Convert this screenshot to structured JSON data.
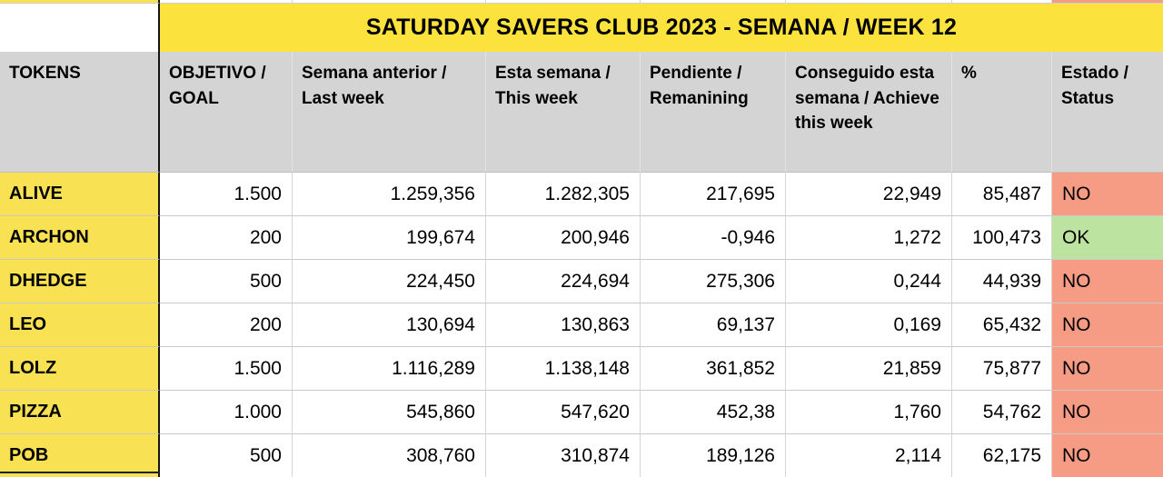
{
  "title": "SATURDAY SAVERS CLUB 2023 - SEMANA / WEEK 12",
  "columns": [
    "TOKENS",
    "OBJETIVO / GOAL",
    "Semana anterior / Last week",
    "Esta semana / This week",
    "Pendiente / Remanining",
    "Conseguido esta semana / Achieve this week",
    "%",
    "Estado / Status"
  ],
  "rows": [
    {
      "token": "ALIVE",
      "goal": "1.500",
      "last_week": "1.259,356",
      "this_week": "1.282,305",
      "remaining": "217,695",
      "achieved": "22,949",
      "percent": "85,487",
      "status": "NO"
    },
    {
      "token": "ARCHON",
      "goal": "200",
      "last_week": "199,674",
      "this_week": "200,946",
      "remaining": "-0,946",
      "achieved": "1,272",
      "percent": "100,473",
      "status": "OK"
    },
    {
      "token": "DHEDGE",
      "goal": "500",
      "last_week": "224,450",
      "this_week": "224,694",
      "remaining": "275,306",
      "achieved": "0,244",
      "percent": "44,939",
      "status": "NO"
    },
    {
      "token": "LEO",
      "goal": "200",
      "last_week": "130,694",
      "this_week": "130,863",
      "remaining": "69,137",
      "achieved": "0,169",
      "percent": "65,432",
      "status": "NO"
    },
    {
      "token": "LOLZ",
      "goal": "1.500",
      "last_week": "1.116,289",
      "this_week": "1.138,148",
      "remaining": "361,852",
      "achieved": "21,859",
      "percent": "75,877",
      "status": "NO"
    },
    {
      "token": "PIZZA",
      "goal": "1.000",
      "last_week": "545,860",
      "this_week": "547,620",
      "remaining": "452,38",
      "achieved": "1,760",
      "percent": "54,762",
      "status": "NO"
    },
    {
      "token": "POB",
      "goal": "500",
      "last_week": "308,760",
      "this_week": "310,874",
      "remaining": "189,126",
      "achieved": "2,114",
      "percent": "62,175",
      "status": "NO"
    }
  ],
  "colors": {
    "title_bg": "#FBE23C",
    "token_bg": "#F8E152",
    "header_bg": "#D4D4D4",
    "status_no_bg": "#F79C84",
    "status_ok_bg": "#BDE3A1",
    "grid_line": "#C9C9C9",
    "token_column_border": "#141414"
  }
}
